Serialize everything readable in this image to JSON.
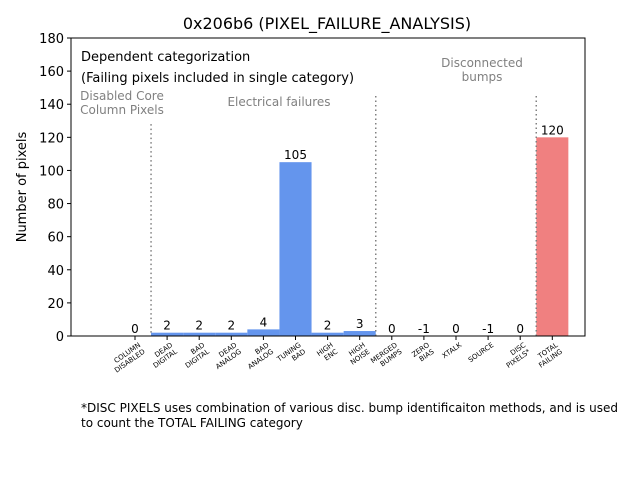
{
  "chart_data": {
    "type": "bar",
    "title": "0x206b6 (PIXEL_FAILURE_ANALYSIS)",
    "xlabel": "",
    "ylabel": "Number of pixels",
    "ylim": [
      0,
      180
    ],
    "yticks": [
      0,
      20,
      40,
      60,
      80,
      100,
      120,
      140,
      160,
      180
    ],
    "grid": false,
    "categories": [
      "COLUMN DISABLED",
      "DEAD DIGITAL",
      "BAD DIGITAL",
      "DEAD ANALOG",
      "BAD ANALOG",
      "TUNING BAD",
      "HIGH ENC",
      "HIGH NOISE",
      "MERGED BUMPS",
      "ZERO BIAS",
      "XTALK",
      "SOURCE",
      "DISC PIXELS*",
      "TOTAL FAILING"
    ],
    "tick_labels": [
      [
        "COLUMN",
        "DISABLED"
      ],
      [
        "DEAD",
        "DIGITAL"
      ],
      [
        "BAD",
        "DIGITAL"
      ],
      [
        "DEAD",
        "ANALOG"
      ],
      [
        "BAD",
        "ANALOG"
      ],
      [
        "TUNING",
        "BAD"
      ],
      [
        "HIGH",
        "ENC"
      ],
      [
        "HIGH",
        "NOISE"
      ],
      [
        "MERGED",
        "BUMPS"
      ],
      [
        "ZERO",
        "BIAS"
      ],
      [
        "XTALK"
      ],
      [
        "SOURCE"
      ],
      [
        "DISC",
        "PIXELS*"
      ],
      [
        "TOTAL",
        "FAILING"
      ]
    ],
    "values": [
      0,
      2,
      2,
      2,
      4,
      105,
      2,
      3,
      0,
      -1,
      0,
      -1,
      0,
      120
    ],
    "value_labels": [
      "0",
      "2",
      "2",
      "2",
      "4",
      "105",
      "2",
      "3",
      "0",
      "-1",
      "0",
      "-1",
      "0",
      "120"
    ],
    "bar_colors": [
      "#6495ED",
      "#6495ED",
      "#6495ED",
      "#6495ED",
      "#6495ED",
      "#6495ED",
      "#6495ED",
      "#6495ED",
      "#6495ED",
      "#6495ED",
      "#6495ED",
      "#6495ED",
      "#6495ED",
      "#F08080"
    ],
    "separators": [
      {
        "after_category": 0,
        "top_value": 128
      },
      {
        "after_category": 7,
        "top_value": 145
      },
      {
        "after_category": 12,
        "top_value": 145
      }
    ],
    "section_labels": [
      {
        "lines": [
          "Disabled Core",
          "Column Pixels"
        ]
      },
      {
        "lines": [
          "Electrical failures"
        ]
      },
      {
        "lines": [
          "Disconnected",
          "bumps"
        ]
      }
    ],
    "annotation": [
      "Dependent categorization",
      "(Failing pixels included in single category)"
    ]
  },
  "footnote": "*DISC PIXELS uses combination of various disc. bump identificaiton methods, and is used to count the TOTAL FAILING category",
  "colors": {
    "bar": "#6495ED",
    "total_bar": "#F08080",
    "separator": "#808080",
    "section_text": "#808080"
  }
}
